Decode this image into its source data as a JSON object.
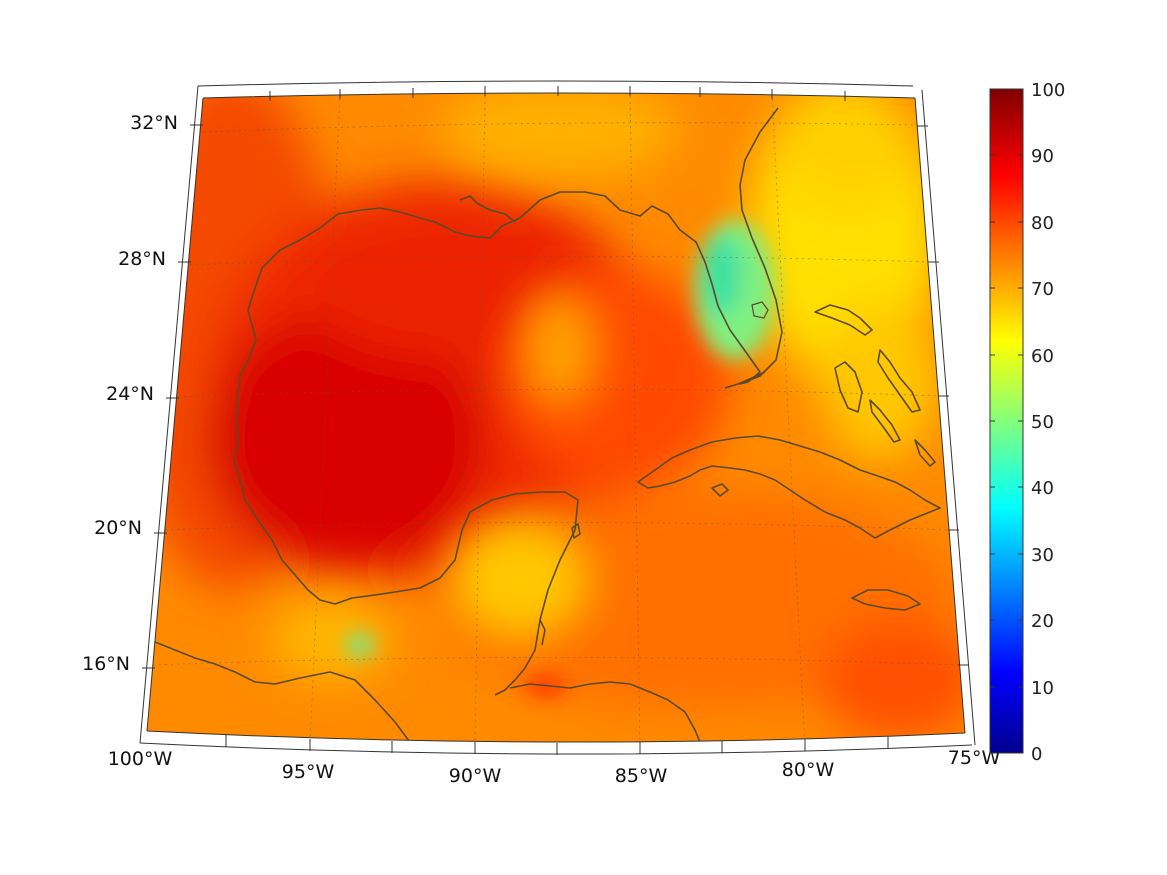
{
  "map": {
    "lat_labels": [
      "32°N",
      "28°N",
      "24°N",
      "20°N",
      "16°N"
    ],
    "lon_labels": [
      "100°W",
      "95°W",
      "90°W",
      "85°W",
      "80°W",
      "75°W"
    ],
    "colorbar": {
      "ticks": [
        "100",
        "90",
        "80",
        "70",
        "60",
        "50",
        "40",
        "30",
        "20",
        "10",
        "0"
      ],
      "min": 0,
      "max": 100,
      "colormap": "jet"
    },
    "coastline_color": "#5a4a2a",
    "extent": {
      "lon_min": -100,
      "lon_max": -75,
      "lat_min": 14,
      "lat_max": 32
    }
  }
}
